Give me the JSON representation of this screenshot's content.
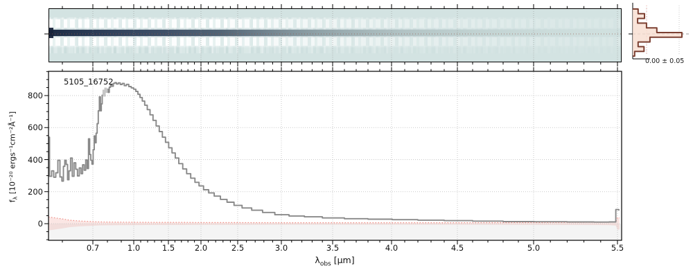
{
  "figure": {
    "id_label": "5105_16752"
  },
  "axes": {
    "xlabel": {
      "base": "λ",
      "sub": "obs",
      "unit": "[μm]"
    },
    "ylabel": {
      "base": "f",
      "sub": "λ",
      "unit": "[10⁻²⁰ ergs⁻¹cm⁻²Å⁻¹]"
    },
    "x_tick_labels": [
      "0.7",
      "1.0",
      "1.5",
      "2.0",
      "2.5",
      "3.0",
      "3.5",
      "4.0",
      "4.5",
      "5.0",
      "5.5"
    ],
    "y_tick_labels": [
      "0",
      "200",
      "400",
      "600",
      "800"
    ]
  },
  "chart_data": {
    "type": "line",
    "title": "",
    "xlabel": "λ_obs [μm]",
    "ylabel": "f_λ [10⁻²⁰ ergs⁻¹ cm⁻² Å⁻¹]",
    "xlim": [
      0.58,
      5.56
    ],
    "ylim": [
      -104,
      951
    ],
    "x_ticks": [
      0.7,
      1.0,
      1.5,
      2.0,
      2.5,
      3.0,
      3.5,
      4.0,
      4.5,
      5.0,
      5.5
    ],
    "y_ticks": [
      0,
      200,
      400,
      600,
      800
    ],
    "grid": true,
    "annotations": [
      {
        "text": "5105_16752",
        "x": 0.68,
        "y": 900
      }
    ],
    "series": [
      {
        "name": "spectrum",
        "color": "#898989",
        "style": "steps",
        "masked_range": [
          0.765,
          0.802
        ],
        "masked_color": "#c6c6c6",
        "points": [
          [
            0.58,
            540
          ],
          [
            0.583,
            296
          ],
          [
            0.586,
            330
          ],
          [
            0.589,
            290
          ],
          [
            0.592,
            318
          ],
          [
            0.595,
            396
          ],
          [
            0.598,
            292
          ],
          [
            0.601,
            266
          ],
          [
            0.605,
            358
          ],
          [
            0.609,
            396
          ],
          [
            0.613,
            370
          ],
          [
            0.617,
            274
          ],
          [
            0.621,
            330
          ],
          [
            0.626,
            410
          ],
          [
            0.631,
            296
          ],
          [
            0.636,
            380
          ],
          [
            0.641,
            340
          ],
          [
            0.646,
            298
          ],
          [
            0.652,
            348
          ],
          [
            0.658,
            312
          ],
          [
            0.664,
            368
          ],
          [
            0.67,
            334
          ],
          [
            0.676,
            398
          ],
          [
            0.681,
            344
          ],
          [
            0.686,
            530
          ],
          [
            0.69,
            432
          ],
          [
            0.694,
            396
          ],
          [
            0.699,
            372
          ],
          [
            0.706,
            462
          ],
          [
            0.713,
            548
          ],
          [
            0.719,
            505
          ],
          [
            0.726,
            565
          ],
          [
            0.733,
            625
          ],
          [
            0.741,
            705
          ],
          [
            0.749,
            792
          ],
          [
            0.755,
            705
          ],
          [
            0.761,
            748
          ],
          [
            0.768,
            802
          ],
          [
            0.774,
            833
          ],
          [
            0.78,
            798
          ],
          [
            0.787,
            846
          ],
          [
            0.794,
            822
          ],
          [
            0.801,
            840
          ],
          [
            0.809,
            820
          ],
          [
            0.818,
            852
          ],
          [
            0.827,
            866
          ],
          [
            0.837,
            858
          ],
          [
            0.848,
            876
          ],
          [
            0.859,
            881
          ],
          [
            0.871,
            872
          ],
          [
            0.885,
            879
          ],
          [
            0.9,
            869
          ],
          [
            0.916,
            876
          ],
          [
            0.932,
            862
          ],
          [
            0.95,
            870
          ],
          [
            0.97,
            856
          ],
          [
            0.99,
            848
          ],
          [
            1.015,
            840
          ],
          [
            1.045,
            826
          ],
          [
            1.075,
            808
          ],
          [
            1.105,
            788
          ],
          [
            1.14,
            766
          ],
          [
            1.175,
            740
          ],
          [
            1.215,
            712
          ],
          [
            1.255,
            680
          ],
          [
            1.3,
            645
          ],
          [
            1.345,
            610
          ],
          [
            1.39,
            575
          ],
          [
            1.435,
            540
          ],
          [
            1.48,
            508
          ],
          [
            1.53,
            474
          ],
          [
            1.58,
            442
          ],
          [
            1.63,
            410
          ],
          [
            1.69,
            375
          ],
          [
            1.75,
            342
          ],
          [
            1.81,
            312
          ],
          [
            1.875,
            284
          ],
          [
            1.94,
            258
          ],
          [
            2.0,
            236
          ],
          [
            2.07,
            212
          ],
          [
            2.14,
            192
          ],
          [
            2.22,
            172
          ],
          [
            2.31,
            152
          ],
          [
            2.4,
            134
          ],
          [
            2.5,
            114
          ],
          [
            2.6,
            98
          ],
          [
            2.72,
            84
          ],
          [
            2.85,
            70
          ],
          [
            3.0,
            56
          ],
          [
            3.15,
            48
          ],
          [
            3.3,
            43
          ],
          [
            3.5,
            36
          ],
          [
            3.7,
            31
          ],
          [
            3.9,
            28
          ],
          [
            4.1,
            25
          ],
          [
            4.3,
            22
          ],
          [
            4.5,
            19
          ],
          [
            4.7,
            16
          ],
          [
            4.9,
            13
          ],
          [
            5.1,
            12
          ],
          [
            5.3,
            11
          ],
          [
            5.42,
            10
          ],
          [
            5.48,
            11
          ],
          [
            5.5,
            88
          ],
          [
            5.53,
            86
          ]
        ]
      },
      {
        "name": "uncertainty",
        "color": "#ee8d84",
        "style": "dotted",
        "band_fill": "rgba(238,140,132,0.22)",
        "points": [
          [
            0.58,
            42
          ],
          [
            0.6,
            30
          ],
          [
            0.62,
            22
          ],
          [
            0.65,
            17
          ],
          [
            0.7,
            13
          ],
          [
            0.75,
            11
          ],
          [
            0.85,
            10
          ],
          [
            1.0,
            9
          ],
          [
            1.3,
            8
          ],
          [
            1.7,
            8
          ],
          [
            2.0,
            7
          ],
          [
            2.5,
            7
          ],
          [
            3.0,
            6
          ],
          [
            3.5,
            6
          ],
          [
            4.0,
            6
          ],
          [
            4.5,
            6
          ],
          [
            5.0,
            7
          ],
          [
            5.3,
            8
          ],
          [
            5.45,
            9
          ],
          [
            5.49,
            12
          ],
          [
            5.5,
            38
          ],
          [
            5.53,
            36
          ]
        ]
      }
    ]
  },
  "panel_2d": {
    "description": "2D drizzled spectrum cutout with bright central trace and negative (white) bands",
    "colors": {
      "background": "#d3e3e2",
      "trace_dark": "#1b2a42",
      "bands": "#ffffff",
      "trace_line_dotted": "#96584a"
    }
  },
  "histogram_panel": {
    "annotation": "0.00 ± 0.05",
    "outline_color": "#7c4032",
    "fill_color": "#f7ddcf",
    "bars_norm": [
      0.11,
      0.24,
      0.1,
      0.28,
      0.49,
      1.0,
      0.35,
      0.11,
      0.23,
      0.04
    ]
  }
}
